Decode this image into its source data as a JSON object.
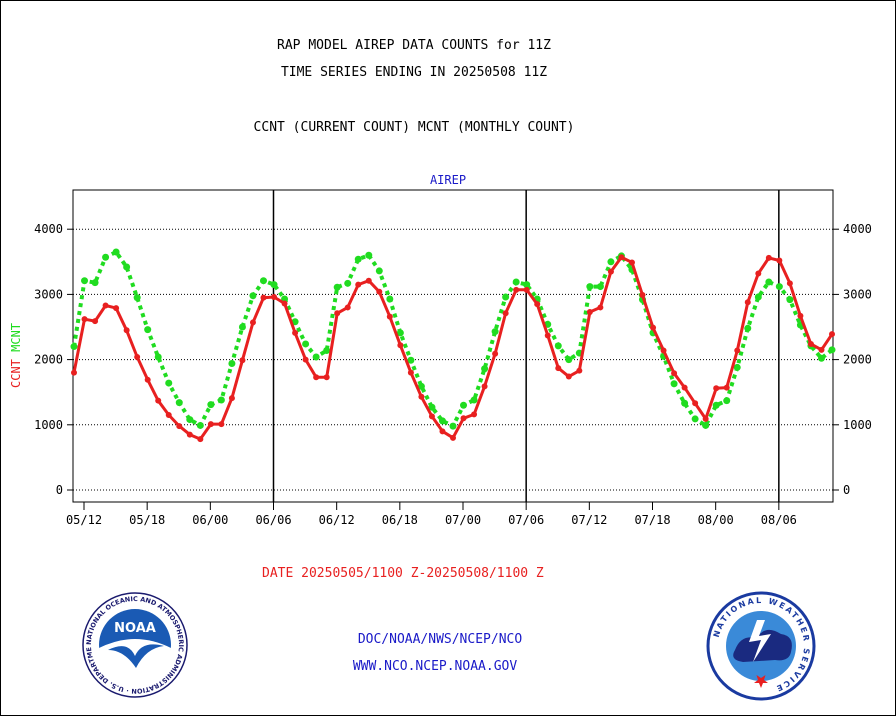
{
  "header": {
    "title": "RAP MODEL AIREP DATA COUNTS for 11Z",
    "subtitle": "TIME SERIES ENDING IN 20250508 11Z",
    "legend_line": "CCNT (CURRENT COUNT) MCNT (MONTHLY COUNT)"
  },
  "footer": {
    "date_range": "DATE 20250505/1100 Z-20250508/1100 Z",
    "agency": "DOC/NOAA/NWS/NCEP/NCO",
    "website": "WWW.NCO.NCEP.NOAA.GOV"
  },
  "logos": {
    "noaa_text": "NOAA",
    "noaa_ring": "NATIONAL OCEANIC AND ATMOSPHERIC ADMINISTRATION · U.S. DEPARTMENT OF COMMERCE",
    "nws_ring": "NATIONAL WEATHER SERVICE"
  },
  "colors": {
    "ccnt": "#e82020",
    "mcnt": "#20dc20",
    "label_blue": "#1a1ac8",
    "grid": "#000000"
  },
  "chart_data": {
    "type": "line",
    "title": "AIREP",
    "ylabel_left": [
      "CCNT",
      "MCNT"
    ],
    "ylim": [
      0,
      4600
    ],
    "yticks": [
      0,
      1000,
      2000,
      3000,
      4000
    ],
    "xticks": [
      "05/12",
      "05/18",
      "06/00",
      "06/06",
      "06/12",
      "06/18",
      "07/00",
      "07/06",
      "07/12",
      "07/18",
      "08/00",
      "08/06"
    ],
    "x_range_hours": [
      72,
      0
    ],
    "x_unit": "hours before 20250508 11Z",
    "grid": "horizontal dotted, vertical solid at 06Z",
    "series": [
      {
        "name": "CCNT",
        "x": [
          72,
          71,
          70,
          69,
          68,
          67,
          66,
          65,
          64,
          63,
          62,
          61,
          60,
          59,
          58,
          57,
          56,
          55,
          54,
          53,
          52,
          51,
          50,
          49,
          48,
          47,
          46,
          45,
          44,
          43,
          42,
          41,
          40,
          39,
          38,
          37,
          36,
          35,
          34,
          33,
          32,
          31,
          30,
          29,
          28,
          27,
          26,
          25,
          24,
          23,
          22,
          21,
          20,
          19,
          18,
          17,
          16,
          15,
          14,
          13,
          12,
          11,
          10,
          9,
          8,
          7,
          6,
          5,
          4,
          3,
          2,
          1,
          0
        ],
        "values": [
          1800,
          2620,
          2590,
          2830,
          2790,
          2450,
          2040,
          1690,
          1370,
          1150,
          980,
          850,
          780,
          1010,
          1010,
          1410,
          1990,
          2570,
          2950,
          2960,
          2860,
          2410,
          2000,
          1730,
          1730,
          2710,
          2800,
          3150,
          3210,
          3040,
          2660,
          2220,
          1800,
          1430,
          1130,
          900,
          800,
          1100,
          1160,
          1590,
          2090,
          2710,
          3070,
          3070,
          2850,
          2370,
          1870,
          1740,
          1830,
          2730,
          2800,
          3350,
          3570,
          3490,
          2990,
          2490,
          2140,
          1790,
          1570,
          1330,
          1090,
          1560,
          1570,
          2140,
          2880,
          3320,
          3560,
          3520,
          3170,
          2670,
          2240,
          2150,
          2390
        ]
      },
      {
        "name": "MCNT",
        "x": [
          72,
          71,
          70,
          69,
          68,
          67,
          66,
          65,
          64,
          63,
          62,
          61,
          60,
          59,
          58,
          57,
          56,
          55,
          54,
          53,
          52,
          51,
          50,
          49,
          48,
          47,
          46,
          45,
          44,
          43,
          42,
          41,
          40,
          39,
          38,
          37,
          36,
          35,
          34,
          33,
          32,
          31,
          30,
          29,
          28,
          27,
          26,
          25,
          24,
          23,
          22,
          21,
          20,
          19,
          18,
          17,
          16,
          15,
          14,
          13,
          12,
          11,
          10,
          9,
          8,
          7,
          6,
          5,
          4,
          3,
          2,
          1,
          0
        ],
        "values": [
          2200,
          3210,
          3180,
          3570,
          3650,
          3420,
          2950,
          2460,
          2040,
          1640,
          1340,
          1080,
          990,
          1310,
          1380,
          1940,
          2500,
          2980,
          3210,
          3150,
          2930,
          2580,
          2240,
          2040,
          2140,
          3110,
          3170,
          3540,
          3600,
          3360,
          2930,
          2410,
          1990,
          1590,
          1270,
          1060,
          980,
          1300,
          1380,
          1860,
          2430,
          2960,
          3190,
          3150,
          2930,
          2540,
          2210,
          2000,
          2100,
          3120,
          3120,
          3500,
          3590,
          3380,
          2920,
          2410,
          2050,
          1630,
          1330,
          1090,
          990,
          1300,
          1370,
          1880,
          2480,
          2960,
          3190,
          3120,
          2920,
          2530,
          2210,
          2020,
          2150
        ]
      }
    ]
  }
}
